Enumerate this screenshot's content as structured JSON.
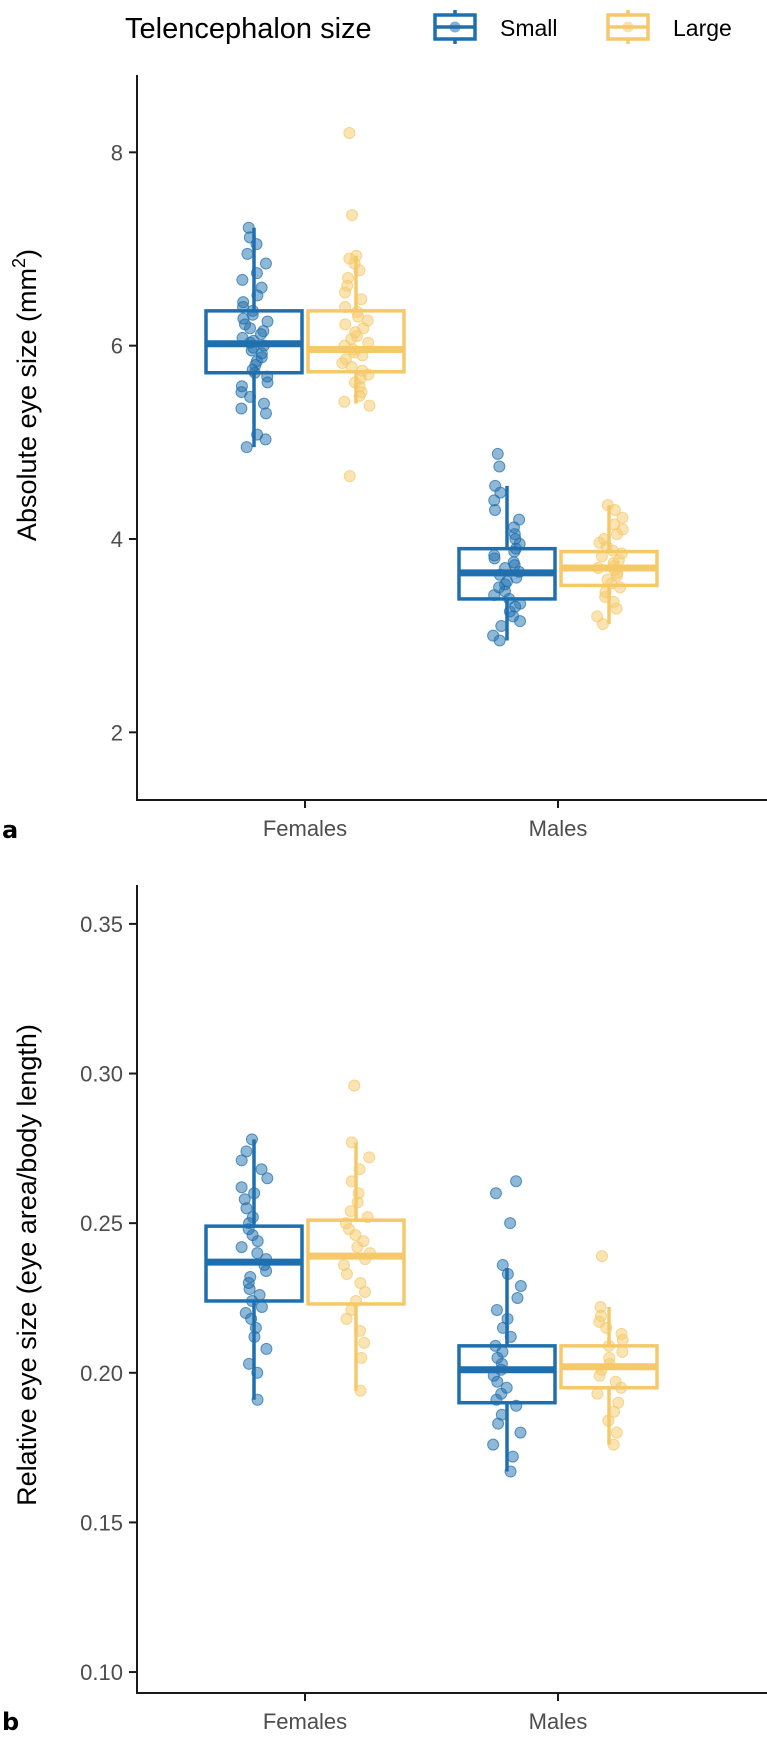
{
  "legend": {
    "title": "Telencephalon size",
    "items": [
      {
        "label": "Small",
        "color": "#1f6fae"
      },
      {
        "label": "Large",
        "color": "#f5c96a"
      }
    ]
  },
  "chart_data": [
    {
      "type": "boxplot",
      "panel_label": "a",
      "ylabel": "Absolute eye size (mm²)",
      "ylabel_main": "Absolute eye size (mm",
      "ylabel_sup": "2",
      "ylabel_end": ")",
      "ylim": [
        1.3,
        8.8
      ],
      "yticks": [
        2,
        4,
        6,
        8
      ],
      "ytick_labels": [
        "2",
        "4",
        "6",
        "8"
      ],
      "categories": [
        "Females",
        "Males"
      ],
      "grid": false,
      "legend_position": "top",
      "series": [
        {
          "name": "Small",
          "boxes": [
            {
              "category": "Females",
              "whisker_low": 4.95,
              "q1": 5.72,
              "median": 6.02,
              "q3": 6.36,
              "whisker_high": 7.22
            },
            {
              "category": "Males",
              "whisker_low": 2.95,
              "q1": 3.38,
              "median": 3.65,
              "q3": 3.9,
              "whisker_high": 4.55
            }
          ],
          "points": [
            [
              4.95,
              5.03,
              5.08,
              5.3,
              5.35,
              5.4,
              5.47,
              5.52,
              5.58,
              5.62,
              5.68,
              5.72,
              5.75,
              5.8,
              5.84,
              5.88,
              5.92,
              5.95,
              5.98,
              6.0,
              6.03,
              6.05,
              6.08,
              6.12,
              6.15,
              6.18,
              6.22,
              6.25,
              6.28,
              6.32,
              6.36,
              6.4,
              6.45,
              6.52,
              6.6,
              6.68,
              6.75,
              6.85,
              6.95,
              7.05,
              7.12,
              7.22
            ],
            [
              2.95,
              3.0,
              3.1,
              3.15,
              3.2,
              3.25,
              3.3,
              3.33,
              3.38,
              3.42,
              3.46,
              3.5,
              3.53,
              3.56,
              3.6,
              3.63,
              3.66,
              3.7,
              3.73,
              3.76,
              3.8,
              3.83,
              3.87,
              3.9,
              3.95,
              4.0,
              4.05,
              4.12,
              4.2,
              4.3,
              4.4,
              4.48,
              4.55,
              4.75,
              4.88
            ]
          ]
        },
        {
          "name": "Large",
          "boxes": [
            {
              "category": "Females",
              "whisker_low": 5.4,
              "q1": 5.73,
              "median": 5.96,
              "q3": 6.36,
              "whisker_high": 6.93
            },
            {
              "category": "Males",
              "whisker_low": 3.12,
              "q1": 3.52,
              "median": 3.7,
              "q3": 3.87,
              "whisker_high": 4.35
            }
          ],
          "points": [
            [
              4.65,
              5.38,
              5.42,
              5.48,
              5.52,
              5.58,
              5.62,
              5.66,
              5.7,
              5.74,
              5.78,
              5.82,
              5.86,
              5.9,
              5.93,
              5.96,
              6.0,
              6.03,
              6.07,
              6.1,
              6.14,
              6.18,
              6.22,
              6.26,
              6.3,
              6.35,
              6.4,
              6.48,
              6.55,
              6.62,
              6.7,
              6.78,
              6.85,
              6.9,
              6.93,
              7.35,
              8.2
            ],
            [
              3.12,
              3.2,
              3.28,
              3.35,
              3.4,
              3.45,
              3.5,
              3.54,
              3.58,
              3.62,
              3.65,
              3.68,
              3.7,
              3.72,
              3.75,
              3.78,
              3.82,
              3.85,
              3.88,
              3.92,
              3.96,
              4.0,
              4.05,
              4.1,
              4.15,
              4.22,
              4.3,
              4.35
            ]
          ]
        }
      ]
    },
    {
      "type": "boxplot",
      "panel_label": "b",
      "ylabel": "Relative eye size (eye area/body length)",
      "ylim": [
        0.093,
        0.363
      ],
      "yticks": [
        0.1,
        0.15,
        0.2,
        0.25,
        0.3,
        0.35
      ],
      "ytick_labels": [
        "0.10",
        "0.15",
        "0.20",
        "0.25",
        "0.30",
        "0.35"
      ],
      "categories": [
        "Females",
        "Males"
      ],
      "grid": false,
      "legend_position": "top",
      "series": [
        {
          "name": "Small",
          "boxes": [
            {
              "category": "Females",
              "whisker_low": 0.191,
              "q1": 0.224,
              "median": 0.237,
              "q3": 0.249,
              "whisker_high": 0.278
            },
            {
              "category": "Males",
              "whisker_low": 0.167,
              "q1": 0.19,
              "median": 0.201,
              "q3": 0.209,
              "whisker_high": 0.235
            }
          ],
          "points": [
            [
              0.191,
              0.2,
              0.203,
              0.208,
              0.212,
              0.215,
              0.218,
              0.22,
              0.222,
              0.224,
              0.226,
              0.228,
              0.23,
              0.232,
              0.234,
              0.236,
              0.238,
              0.24,
              0.242,
              0.244,
              0.246,
              0.248,
              0.25,
              0.252,
              0.255,
              0.258,
              0.26,
              0.262,
              0.265,
              0.268,
              0.271,
              0.274,
              0.278
            ],
            [
              0.167,
              0.172,
              0.176,
              0.18,
              0.183,
              0.186,
              0.189,
              0.191,
              0.193,
              0.195,
              0.197,
              0.199,
              0.201,
              0.203,
              0.205,
              0.207,
              0.209,
              0.212,
              0.215,
              0.218,
              0.221,
              0.225,
              0.229,
              0.233,
              0.236,
              0.25,
              0.26,
              0.264
            ]
          ]
        },
        {
          "name": "Large",
          "boxes": [
            {
              "category": "Females",
              "whisker_low": 0.194,
              "q1": 0.223,
              "median": 0.239,
              "q3": 0.251,
              "whisker_high": 0.277
            },
            {
              "category": "Males",
              "whisker_low": 0.176,
              "q1": 0.195,
              "median": 0.202,
              "q3": 0.209,
              "whisker_high": 0.222
            }
          ],
          "points": [
            [
              0.194,
              0.205,
              0.21,
              0.214,
              0.218,
              0.221,
              0.224,
              0.227,
              0.23,
              0.233,
              0.236,
              0.238,
              0.24,
              0.242,
              0.244,
              0.246,
              0.248,
              0.25,
              0.252,
              0.254,
              0.257,
              0.26,
              0.264,
              0.268,
              0.272,
              0.277,
              0.296
            ],
            [
              0.176,
              0.18,
              0.184,
              0.187,
              0.19,
              0.193,
              0.195,
              0.197,
              0.199,
              0.201,
              0.203,
              0.205,
              0.207,
              0.209,
              0.211,
              0.213,
              0.215,
              0.217,
              0.219,
              0.222,
              0.239
            ]
          ]
        }
      ]
    }
  ]
}
